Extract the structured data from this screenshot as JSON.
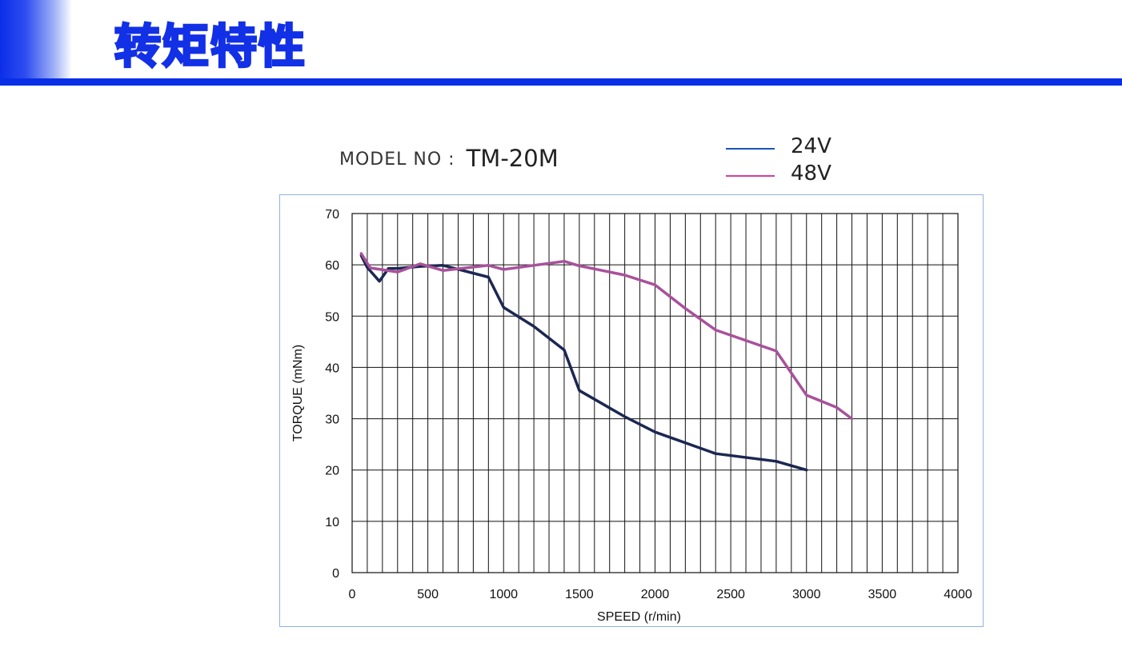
{
  "header": {
    "title": "转矩特性"
  },
  "model": {
    "label": "MODEL NO",
    "colon": ":",
    "value": "TM-20M"
  },
  "legend": [
    {
      "name": "24V",
      "color": "#1a55b5"
    },
    {
      "name": "48V",
      "color": "#d040a0"
    }
  ],
  "colors": {
    "brand": "#0a2fe6",
    "frame": "#8fb4e3",
    "line_24v": "#1c2752",
    "line_48v": "#a9519b"
  },
  "chart_data": {
    "type": "line",
    "xlabel": "SPEED (r/min)",
    "ylabel": "TORQUE (mNm)",
    "xlim": [
      0,
      4000
    ],
    "ylim": [
      0,
      70
    ],
    "x_ticks": [
      0,
      500,
      1000,
      1500,
      2000,
      2500,
      3000,
      3500,
      4000
    ],
    "y_ticks": [
      0,
      10,
      20,
      30,
      40,
      50,
      60,
      70
    ],
    "x_tick_labels": [
      "0",
      "500",
      "1000",
      "1500",
      "2000",
      "2500",
      "3000",
      "3500",
      "4000"
    ],
    "y_tick_labels": [
      "0",
      "10",
      "20",
      "30",
      "40",
      "50",
      "60",
      "70"
    ],
    "grid": true,
    "series": [
      {
        "name": "24V",
        "x": [
          60,
          100,
          180,
          240,
          300,
          450,
          600,
          900,
          1000,
          1200,
          1400,
          1500,
          1800,
          2000,
          2400,
          2800,
          3000
        ],
        "y": [
          61.8,
          59.5,
          56.8,
          59.3,
          59.3,
          59.7,
          59.9,
          57.6,
          51.7,
          48.0,
          43.4,
          35.5,
          30.4,
          27.4,
          23.2,
          21.7,
          20.0
        ]
      },
      {
        "name": "48V",
        "x": [
          60,
          120,
          300,
          450,
          600,
          900,
          1000,
          1400,
          1500,
          1800,
          2000,
          2200,
          2400,
          2800,
          3000,
          3200,
          3300
        ],
        "y": [
          62.2,
          59.4,
          58.6,
          60.2,
          58.9,
          59.9,
          59.1,
          60.7,
          59.8,
          58.0,
          56.1,
          51.5,
          47.3,
          43.2,
          34.6,
          32.2,
          30.0
        ]
      }
    ]
  }
}
